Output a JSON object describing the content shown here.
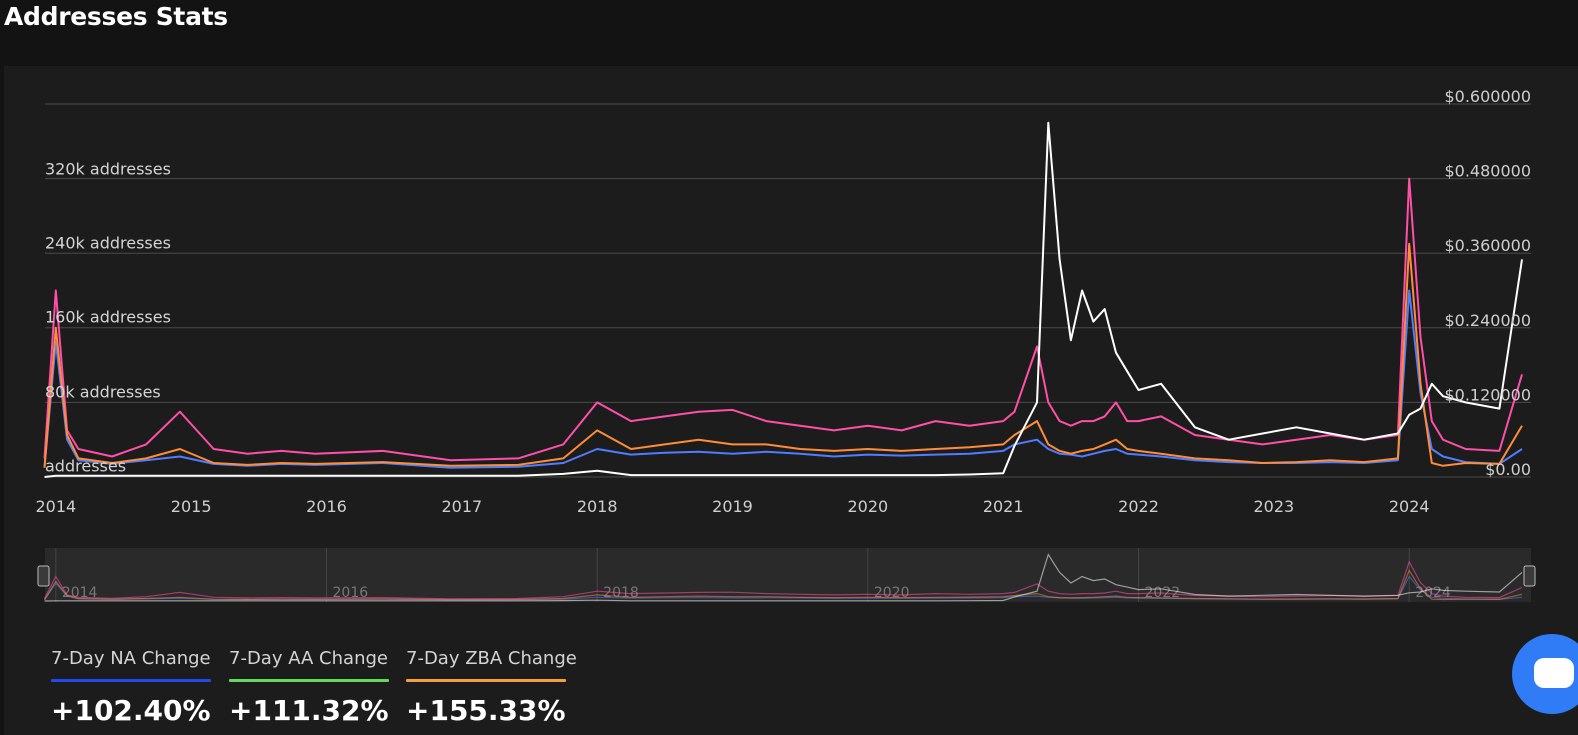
{
  "header": {
    "title": "Addresses Stats"
  },
  "chart_data": {
    "type": "line",
    "x": [
      "2013-12",
      "2014-01",
      "2014-02",
      "2014-03",
      "2014-06",
      "2014-09",
      "2014-12",
      "2015-03",
      "2015-06",
      "2015-09",
      "2015-12",
      "2016-06",
      "2016-12",
      "2017-06",
      "2017-10",
      "2018-01",
      "2018-04",
      "2018-07",
      "2018-10",
      "2019-01",
      "2019-04",
      "2019-07",
      "2019-10",
      "2020-01",
      "2020-04",
      "2020-07",
      "2020-10",
      "2021-01",
      "2021-02",
      "2021-04",
      "2021-05",
      "2021-06",
      "2021-07",
      "2021-08",
      "2021-09",
      "2021-10",
      "2021-11",
      "2021-12",
      "2022-01",
      "2022-03",
      "2022-06",
      "2022-09",
      "2022-12",
      "2023-03",
      "2023-06",
      "2023-09",
      "2023-12",
      "2024-01",
      "2024-02",
      "2024-03",
      "2024-04",
      "2024-06",
      "2024-09",
      "2024-11"
    ],
    "y_left_ticks": [
      "addresses",
      "80k addresses",
      "160k addresses",
      "240k addresses",
      "320k addresses"
    ],
    "y_left_lim": [
      0,
      400000
    ],
    "y_right_ticks": [
      "$0.00",
      "$0.120000",
      "$0.240000",
      "$0.360000",
      "$0.480000",
      "$0.600000"
    ],
    "y_right_lim": [
      0,
      0.6
    ],
    "x_ticks": [
      "2014",
      "2015",
      "2016",
      "2017",
      "2018",
      "2019",
      "2020",
      "2021",
      "2022",
      "2023",
      "2024"
    ],
    "series": [
      {
        "color": "#ff4fa7",
        "axis": "left",
        "values": [
          20000,
          200000,
          50000,
          30000,
          22000,
          35000,
          70000,
          30000,
          25000,
          28000,
          25000,
          28000,
          18000,
          20000,
          35000,
          80000,
          60000,
          65000,
          70000,
          72000,
          60000,
          55000,
          50000,
          55000,
          50000,
          60000,
          55000,
          60000,
          70000,
          140000,
          80000,
          60000,
          55000,
          60000,
          60000,
          65000,
          80000,
          60000,
          60000,
          65000,
          45000,
          40000,
          35000,
          40000,
          45000,
          40000,
          45000,
          320000,
          150000,
          60000,
          40000,
          30000,
          28000,
          110000
        ]
      },
      {
        "color": "#4f7dff",
        "axis": "left",
        "values": [
          10000,
          145000,
          40000,
          18000,
          14000,
          18000,
          22000,
          14000,
          12000,
          14000,
          13000,
          15000,
          10000,
          11000,
          15000,
          30000,
          24000,
          26000,
          27000,
          25000,
          27000,
          25000,
          22000,
          24000,
          23000,
          24000,
          25000,
          28000,
          35000,
          40000,
          30000,
          25000,
          24000,
          22000,
          25000,
          28000,
          30000,
          25000,
          24000,
          22000,
          18000,
          16000,
          15000,
          15000,
          16000,
          15000,
          18000,
          200000,
          90000,
          30000,
          22000,
          16000,
          14000,
          30000
        ]
      },
      {
        "color": "#ff8c38",
        "axis": "left",
        "values": [
          10000,
          160000,
          45000,
          20000,
          15000,
          20000,
          30000,
          15000,
          13000,
          15000,
          14000,
          16000,
          12000,
          13000,
          20000,
          50000,
          30000,
          35000,
          40000,
          35000,
          35000,
          30000,
          28000,
          30000,
          28000,
          30000,
          32000,
          35000,
          45000,
          60000,
          35000,
          28000,
          25000,
          28000,
          30000,
          35000,
          40000,
          30000,
          28000,
          25000,
          20000,
          18000,
          15000,
          16000,
          18000,
          16000,
          20000,
          250000,
          100000,
          15000,
          12000,
          15000,
          14000,
          55000
        ]
      },
      {
        "color": "#ffffff",
        "axis": "right",
        "values": [
          0.0,
          0.002,
          0.002,
          0.002,
          0.002,
          0.002,
          0.002,
          0.002,
          0.002,
          0.002,
          0.002,
          0.002,
          0.002,
          0.002,
          0.005,
          0.01,
          0.003,
          0.003,
          0.003,
          0.003,
          0.003,
          0.003,
          0.003,
          0.003,
          0.003,
          0.003,
          0.004,
          0.006,
          0.05,
          0.12,
          0.57,
          0.35,
          0.22,
          0.3,
          0.25,
          0.27,
          0.2,
          0.17,
          0.14,
          0.15,
          0.08,
          0.06,
          0.07,
          0.08,
          0.07,
          0.06,
          0.07,
          0.1,
          0.11,
          0.15,
          0.13,
          0.12,
          0.11,
          0.35
        ]
      }
    ],
    "navigator_ticks": [
      "2014",
      "2016",
      "2018",
      "2020",
      "2022",
      "2024"
    ]
  },
  "stats": [
    {
      "label": "7-Day NA Change",
      "value": "+102.40%",
      "color": "#2448f0"
    },
    {
      "label": "7-Day AA Change",
      "value": "+111.32%",
      "color": "#63d85c"
    },
    {
      "label": "7-Day ZBA Change",
      "value": "+155.33%",
      "color": "#f2a23a"
    }
  ]
}
